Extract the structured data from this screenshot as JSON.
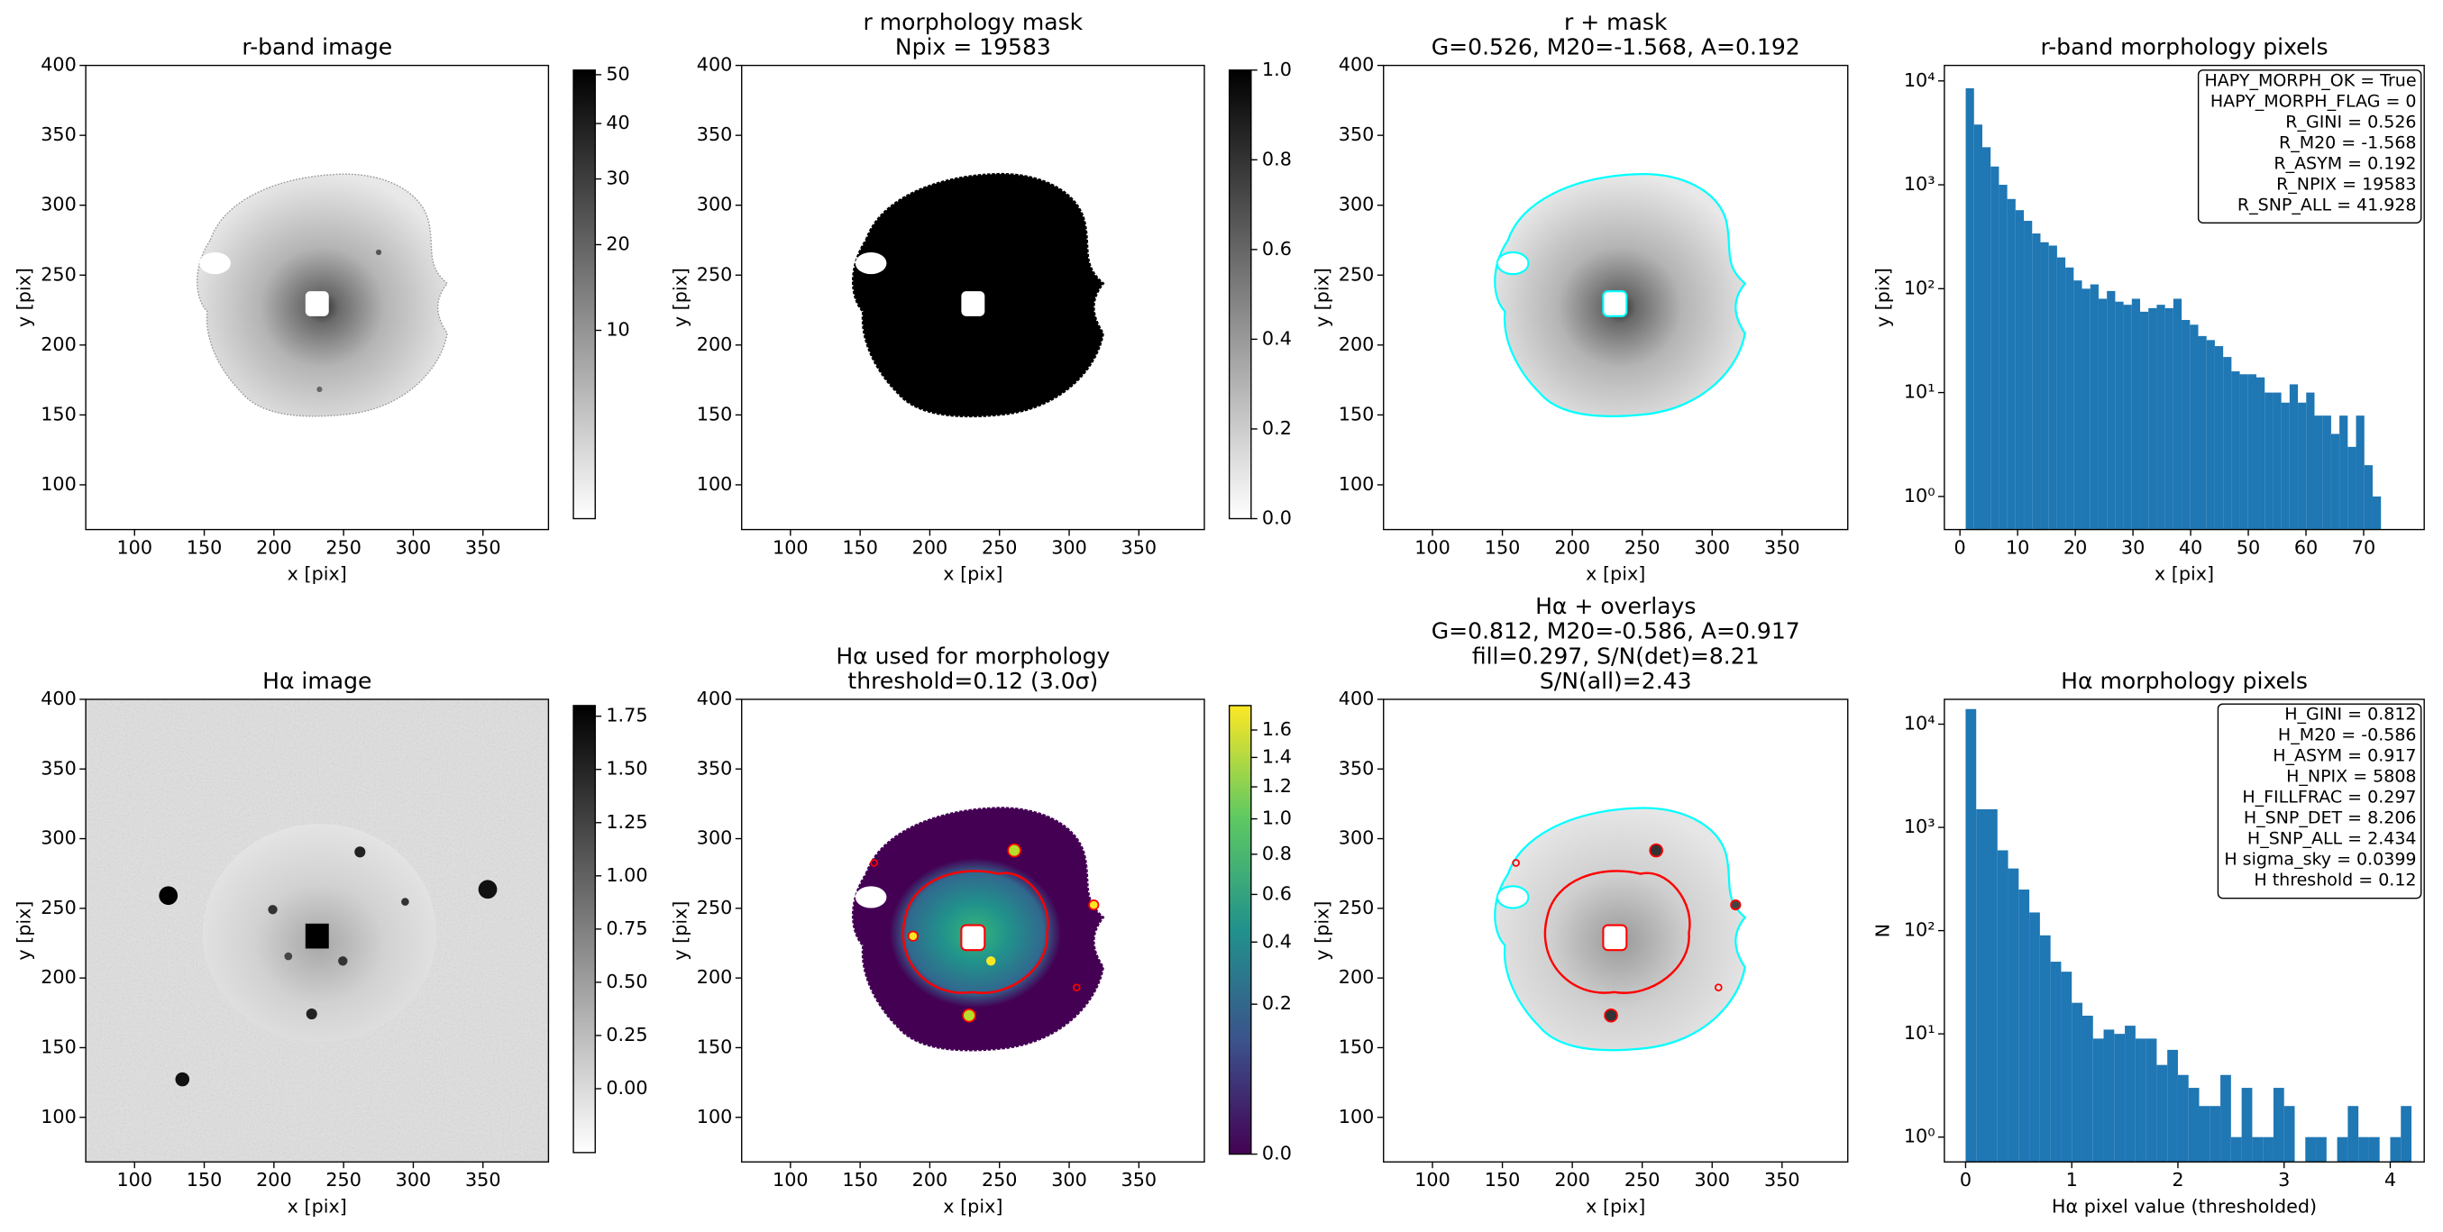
{
  "chart_data": [
    {
      "type": "image",
      "title": [
        "r-band image"
      ],
      "xlabel": "x [pix]",
      "ylabel": "y [pix]",
      "xlim": [
        65,
        397
      ],
      "ylim": [
        68,
        400
      ],
      "xticks": [
        100,
        150,
        200,
        250,
        300,
        350
      ],
      "yticks": [
        100,
        150,
        200,
        250,
        300,
        350,
        400
      ],
      "colorbar": {
        "lim": [
          0.08,
          51
        ],
        "scale": "sqrt",
        "cmap": "gray_r",
        "ticks": [
          10,
          20,
          30,
          40,
          50
        ]
      }
    },
    {
      "type": "image",
      "title": [
        "r morphology mask",
        "Npix = 19583"
      ],
      "xlabel": "x [pix]",
      "ylabel": "y [pix]",
      "xlim": [
        65,
        397
      ],
      "ylim": [
        68,
        400
      ],
      "xticks": [
        100,
        150,
        200,
        250,
        300,
        350
      ],
      "yticks": [
        100,
        150,
        200,
        250,
        300,
        350,
        400
      ],
      "colorbar": {
        "lim": [
          0,
          1
        ],
        "scale": "linear",
        "cmap": "gray_r",
        "ticks": [
          {
            "value": 0,
            "label": "0.0"
          },
          {
            "value": 0.2,
            "label": "0.2"
          },
          {
            "value": 0.4,
            "label": "0.4"
          },
          {
            "value": 0.6,
            "label": "0.6"
          },
          {
            "value": 0.8,
            "label": "0.8"
          },
          {
            "value": 1,
            "label": "1.0"
          }
        ]
      }
    },
    {
      "type": "image",
      "title": [
        "r + mask",
        "G=0.526, M20=-1.568, A=0.192"
      ],
      "xlabel": "x [pix]",
      "ylabel": "y [pix]",
      "xlim": [
        65,
        397
      ],
      "ylim": [
        68,
        400
      ],
      "xticks": [
        100,
        150,
        200,
        250,
        300,
        350
      ],
      "yticks": [
        100,
        150,
        200,
        250,
        300,
        350,
        400
      ]
    },
    {
      "type": "histogram",
      "title": [
        "r-band morphology pixels"
      ],
      "xlabel": "x [pix]",
      "ylabel": "y [pix]",
      "color": "#1f77b4",
      "bins": [
        1,
        2.44,
        3.88,
        5.32,
        6.76,
        8.2,
        9.64,
        11.08,
        12.52,
        13.96,
        15.4,
        16.84,
        18.28,
        19.72,
        21.16,
        22.6,
        24.04,
        25.48,
        26.92,
        28.36,
        29.8,
        31.24,
        32.68,
        34.12,
        35.56,
        37,
        38.44,
        39.88,
        41.32,
        42.76,
        44.2,
        45.64,
        47.08,
        48.52,
        49.96,
        51.4,
        52.84,
        54.28,
        55.72,
        57.16,
        58.6,
        60.04,
        61.48,
        62.92,
        64.36,
        65.8,
        67.24,
        68.68,
        70.12,
        71.56,
        73
      ],
      "values": [
        8500,
        3800,
        2300,
        1500,
        1000,
        730,
        570,
        450,
        340,
        280,
        260,
        200,
        160,
        120,
        100,
        110,
        80,
        95,
        75,
        70,
        80,
        60,
        65,
        70,
        65,
        80,
        50,
        45,
        35,
        32,
        28,
        22,
        16,
        15,
        15,
        14,
        10,
        10,
        8,
        12,
        8,
        10,
        6,
        6,
        4,
        6,
        3,
        6,
        2,
        1
      ],
      "xlim": [
        -2.7,
        80.5
      ],
      "ylim": [
        0.48,
        14100
      ],
      "log_y": true,
      "xticks": [
        0,
        10,
        20,
        30,
        40,
        50,
        60,
        70
      ],
      "yticks": [
        {
          "value": 1,
          "label": "10⁰"
        },
        {
          "value": 10,
          "label": "10¹"
        },
        {
          "value": 100,
          "label": "10²"
        },
        {
          "value": 1000,
          "label": "10³"
        },
        {
          "value": 10000,
          "label": "10⁴"
        }
      ],
      "annotation_lines": [
        "HAPY_MORPH_OK = True",
        "HAPY_MORPH_FLAG = 0",
        "R_GINI = 0.526",
        "R_M20 = -1.568",
        "R_ASYM = 0.192",
        "R_NPIX = 19583",
        "R_SNP_ALL = 41.928"
      ]
    },
    {
      "type": "image",
      "title": [
        "Hα image"
      ],
      "xlabel": "x [pix]",
      "ylabel": "y [pix]",
      "xlim": [
        65,
        397
      ],
      "ylim": [
        68,
        400
      ],
      "xticks": [
        100,
        150,
        200,
        250,
        300,
        350
      ],
      "yticks": [
        100,
        150,
        200,
        250,
        300,
        350,
        400
      ],
      "colorbar": {
        "lim": [
          -0.3,
          1.8
        ],
        "scale": "linear",
        "cmap": "gray_r",
        "ticks": [
          {
            "value": 0,
            "label": "0.00"
          },
          {
            "value": 0.25,
            "label": "0.25"
          },
          {
            "value": 0.5,
            "label": "0.50"
          },
          {
            "value": 0.75,
            "label": "0.75"
          },
          {
            "value": 1,
            "label": "1.00"
          },
          {
            "value": 1.25,
            "label": "1.25"
          },
          {
            "value": 1.5,
            "label": "1.50"
          },
          {
            "value": 1.75,
            "label": "1.75"
          }
        ]
      }
    },
    {
      "type": "image",
      "title": [
        "Hα used for morphology",
        "threshold=0.12 (3.0σ)"
      ],
      "xlabel": "x [pix]",
      "ylabel": "y [pix]",
      "xlim": [
        65,
        397
      ],
      "ylim": [
        68,
        400
      ],
      "xticks": [
        100,
        150,
        200,
        250,
        300,
        350
      ],
      "yticks": [
        100,
        150,
        200,
        250,
        300,
        350,
        400
      ],
      "colorbar": {
        "lim": [
          0,
          1.79
        ],
        "scale": "sqrt",
        "cmap": "viridis",
        "ticks": [
          {
            "value": 0,
            "label": "0.0"
          },
          {
            "value": 0.2,
            "label": "0.2"
          },
          {
            "value": 0.4,
            "label": "0.4"
          },
          {
            "value": 0.6,
            "label": "0.6"
          },
          {
            "value": 0.8,
            "label": "0.8"
          },
          {
            "value": 1,
            "label": "1.0"
          },
          {
            "value": 1.2,
            "label": "1.2"
          },
          {
            "value": 1.4,
            "label": "1.4"
          },
          {
            "value": 1.6,
            "label": "1.6"
          }
        ]
      }
    },
    {
      "type": "image",
      "title": [
        "Hα + overlays",
        "G=0.812, M20=-0.586, A=0.917",
        "fill=0.297, S/N(det)=8.21",
        "S/N(all)=2.43"
      ],
      "xlabel": "x [pix]",
      "ylabel": "y [pix]",
      "xlim": [
        65,
        397
      ],
      "ylim": [
        68,
        400
      ],
      "xticks": [
        100,
        150,
        200,
        250,
        300,
        350
      ],
      "yticks": [
        100,
        150,
        200,
        250,
        300,
        350,
        400
      ]
    },
    {
      "type": "histogram",
      "title": [
        "Hα morphology pixels"
      ],
      "xlabel": "Hα pixel value (thresholded)",
      "ylabel": "N",
      "color": "#1f77b4",
      "bins": [
        0,
        0.1,
        0.2,
        0.3,
        0.4,
        0.5,
        0.6,
        0.7,
        0.8,
        0.9,
        1,
        1.1,
        1.2,
        1.3,
        1.4,
        1.5,
        1.6,
        1.7,
        1.8,
        1.9,
        2,
        2.1,
        2.2,
        2.3,
        2.4,
        2.5,
        2.6,
        2.7,
        2.8,
        2.9,
        3,
        3.1,
        3.2,
        3.3,
        3.4,
        3.5,
        3.6,
        3.7,
        3.8,
        3.9,
        4,
        4.1,
        4.2
      ],
      "values": [
        14000,
        1500,
        1500,
        600,
        400,
        250,
        150,
        90,
        50,
        40,
        20,
        15,
        9,
        11,
        10,
        12,
        9,
        9,
        5,
        7,
        4,
        3,
        2,
        2,
        4,
        1,
        3,
        1,
        1,
        3,
        2,
        0,
        1,
        1,
        0,
        1,
        2,
        1,
        1,
        0,
        1,
        2
      ],
      "xlim": [
        -0.2,
        4.32
      ],
      "ylim": [
        0.575,
        17400
      ],
      "log_y": true,
      "xticks": [
        0,
        1,
        2,
        3,
        4
      ],
      "yticks": [
        {
          "value": 1,
          "label": "10⁰"
        },
        {
          "value": 10,
          "label": "10¹"
        },
        {
          "value": 100,
          "label": "10²"
        },
        {
          "value": 1000,
          "label": "10³"
        },
        {
          "value": 10000,
          "label": "10⁴"
        }
      ],
      "annotation_lines": [
        "H_GINI = 0.812",
        "H_M20 = -0.586",
        "H_ASYM = 0.917",
        "H_NPIX = 5808",
        "H_FILLFRAC = 0.297",
        "H_SNP_DET = 8.206",
        "H_SNP_ALL = 2.434",
        "H sigma_sky = 0.0399",
        "H threshold = 0.12"
      ]
    }
  ]
}
